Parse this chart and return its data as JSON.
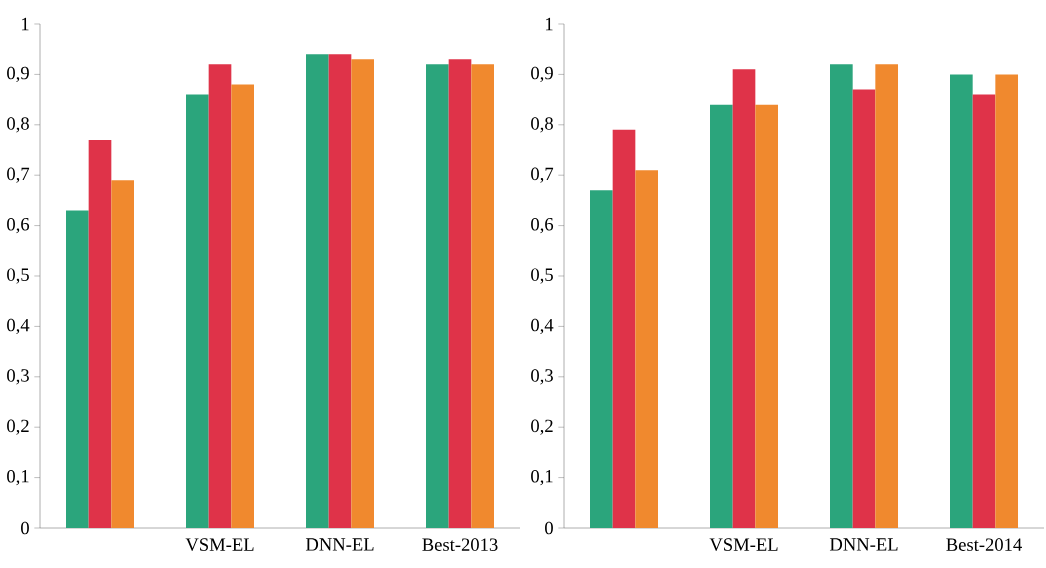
{
  "chart_data": [
    {
      "type": "bar",
      "categories": [
        null,
        "VSM-EL",
        "DNN-EL",
        "Best-2013"
      ],
      "series": [
        {
          "color": "#2ba57c",
          "values": [
            0.63,
            0.86,
            0.94,
            0.92
          ]
        },
        {
          "color": "#df3349",
          "values": [
            0.77,
            0.92,
            0.94,
            0.93
          ]
        },
        {
          "color": "#f0892e",
          "values": [
            0.69,
            0.88,
            0.93,
            0.92
          ]
        }
      ],
      "ylim": [
        0,
        1
      ],
      "yticks": [
        0,
        {
          "value": 0.1,
          "label": "0,1"
        },
        {
          "value": 0.2,
          "label": "0,2"
        },
        {
          "value": 0.3,
          "label": "0,3"
        },
        {
          "value": 0.4,
          "label": "0,4"
        },
        {
          "value": 0.5,
          "label": "0,5"
        },
        {
          "value": 0.6,
          "label": "0,6"
        },
        {
          "value": 0.7,
          "label": "0,7"
        },
        {
          "value": 0.8,
          "label": "0,8"
        },
        {
          "value": 0.9,
          "label": "0,9"
        },
        1
      ],
      "grid": false
    },
    {
      "type": "bar",
      "categories": [
        null,
        "VSM-EL",
        "DNN-EL",
        "Best-2014"
      ],
      "series": [
        {
          "color": "#2ba57c",
          "values": [
            0.67,
            0.84,
            0.92,
            0.9
          ]
        },
        {
          "color": "#df3349",
          "values": [
            0.79,
            0.91,
            0.87,
            0.86
          ]
        },
        {
          "color": "#f0892e",
          "values": [
            0.71,
            0.84,
            0.92,
            0.9
          ]
        }
      ],
      "ylim": [
        0,
        1
      ],
      "yticks": [
        0,
        {
          "value": 0.1,
          "label": "0,1"
        },
        {
          "value": 0.2,
          "label": "0,2"
        },
        {
          "value": 0.3,
          "label": "0,3"
        },
        {
          "value": 0.4,
          "label": "0,4"
        },
        {
          "value": 0.5,
          "label": "0,5"
        },
        {
          "value": 0.6,
          "label": "0,6"
        },
        {
          "value": 0.7,
          "label": "0,7"
        },
        {
          "value": 0.8,
          "label": "0,8"
        },
        {
          "value": 0.9,
          "label": "0,9"
        },
        1
      ],
      "grid": false
    }
  ]
}
